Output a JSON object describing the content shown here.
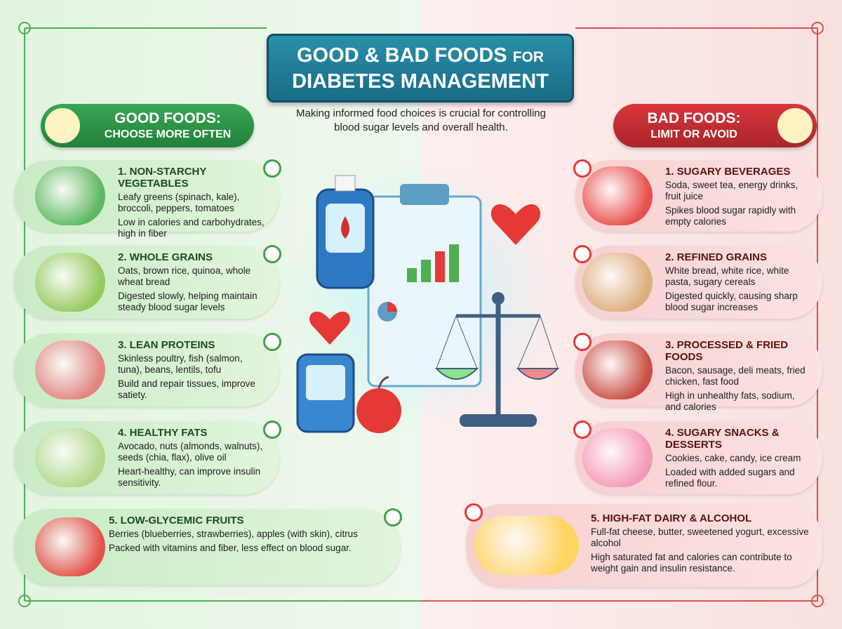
{
  "header": {
    "title_main": "GOOD & BAD FOODS",
    "title_connector": "FOR",
    "title_line2": "DIABETES MANAGEMENT",
    "subtitle": "Making informed food choices is crucial for controlling blood sugar levels and overall health."
  },
  "good": {
    "heading": "GOOD FOODS:",
    "subheading": "CHOOSE MORE OFTEN",
    "items": [
      {
        "title": "1. NON-STARCHY VEGETABLES",
        "description": "Leafy greens (spinach, kale), broccoli, peppers, tomatoes",
        "benefit": "Low in calories and carbohydrates, high in fiber"
      },
      {
        "title": "2. WHOLE GRAINS",
        "description": "Oats, brown rice, quinoa, whole wheat bread",
        "benefit": "Digested slowly, helping maintain steady blood sugar levels"
      },
      {
        "title": "3. LEAN PROTEINS",
        "description": "Skinless poultry, fish (salmon, tuna), beans, lentils, tofu",
        "benefit": "Build and repair tissues, improve satiety."
      },
      {
        "title": "4. HEALTHY FATS",
        "description": "Avocado, nuts (almonds, walnuts), seeds (chia, flax), olive oil",
        "benefit": "Heart-healthy, can improve insulin sensitivity."
      },
      {
        "title": "5. LOW-GLYCEMIC FRUITS",
        "description": "Berries (blueberries, strawberries), apples (with skin), citrus",
        "benefit": "Packed with vitamins and fiber, less effect on blood sugar."
      }
    ]
  },
  "bad": {
    "heading": "BAD FOODS:",
    "subheading": "LIMIT OR AVOID",
    "items": [
      {
        "title": "1. SUGARY BEVERAGES",
        "description": "Soda, sweet tea, energy drinks, fruit juice",
        "benefit": "Spikes blood sugar rapidly with empty calories"
      },
      {
        "title": "2. REFINED GRAINS",
        "description": "White bread, white rice, white pasta, sugary cereals",
        "benefit": "Digested quickly, causing sharp blood sugar increases"
      },
      {
        "title": "3. PROCESSED & FRIED FOODS",
        "description": "Bacon, sausage, deli meats, fried chicken, fast food",
        "benefit": "High in unhealthy fats, sodium, and calories"
      },
      {
        "title": "4. SUGARY SNACKS & DESSERTS",
        "description": "Cookies, cake, candy, ice cream",
        "benefit": "Loaded with added sugars and refined flour."
      },
      {
        "title": "5. HIGH-FAT DAIRY & ALCOHOL",
        "description": "Full-fat cheese, butter, sweetened yogurt, excessive alcohol",
        "benefit": "High saturated fat and calories can contribute to weight gain and insulin resistance."
      }
    ]
  }
}
